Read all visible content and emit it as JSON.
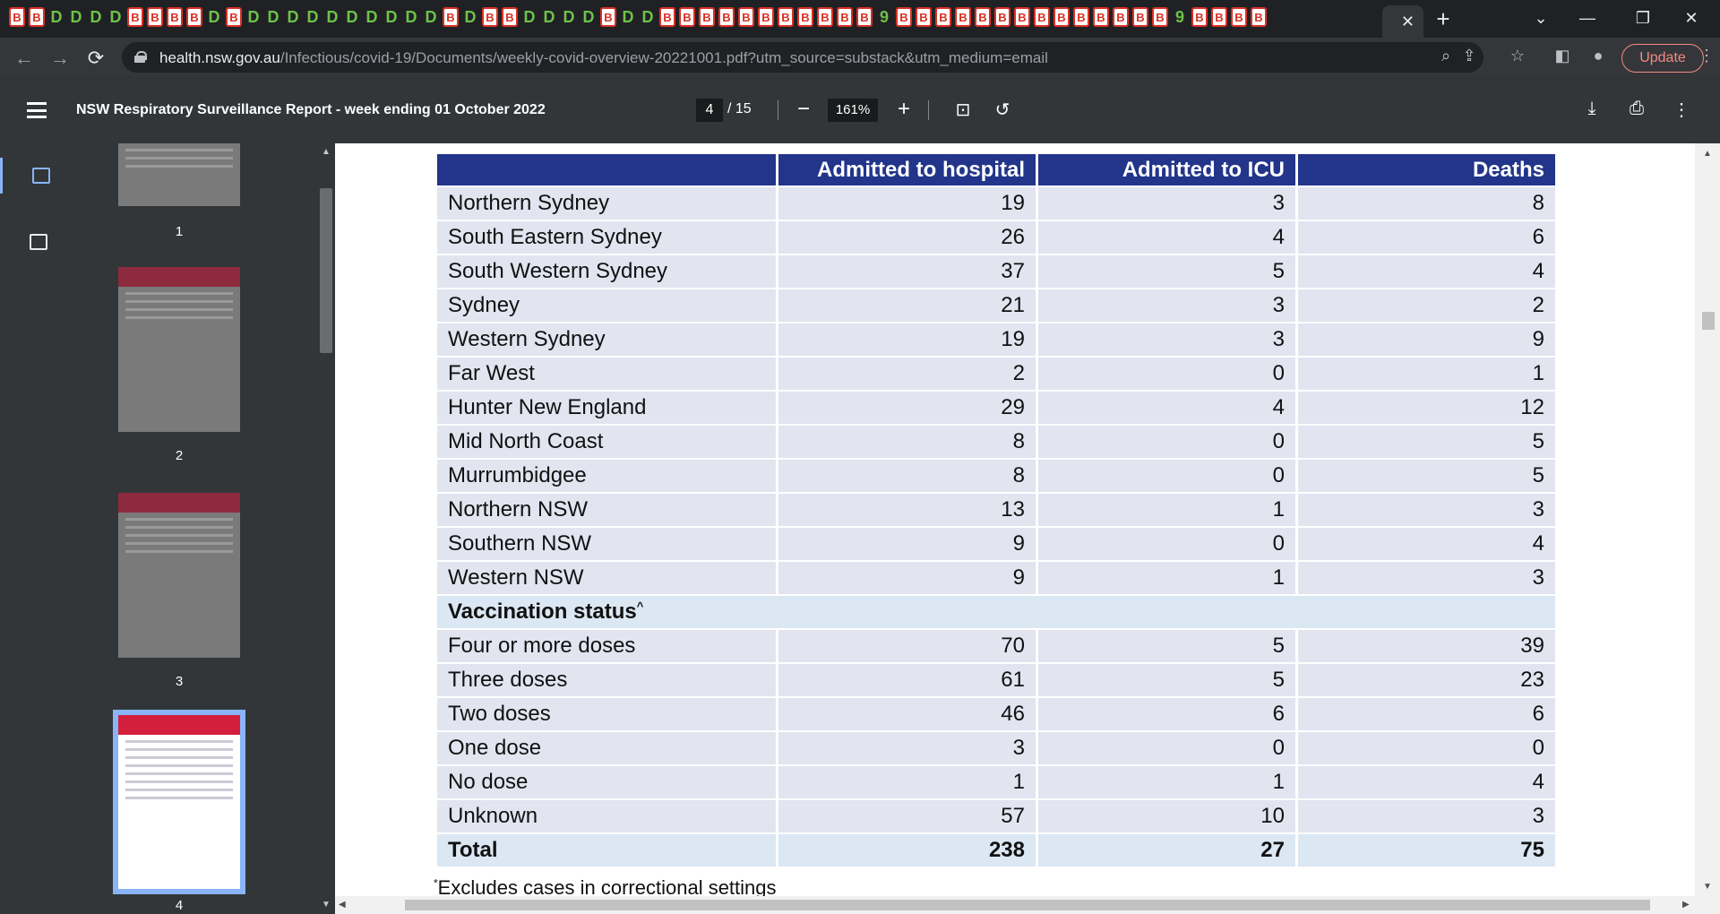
{
  "browser": {
    "active_tab_close": "✕",
    "new_tab": "+",
    "window_controls": {
      "dropdown": "⌄",
      "minimize": "—",
      "restore": "❐",
      "close": "✕"
    },
    "tab_icons": [
      "B",
      "B",
      "D",
      "D",
      "D",
      "D",
      "B",
      "B",
      "B",
      "B",
      "D",
      "B",
      "D",
      "D",
      "D",
      "D",
      "D",
      "D",
      "D",
      "D",
      "D",
      "D",
      "B",
      "D",
      "B",
      "B",
      "D",
      "D",
      "D",
      "D",
      "B",
      "D",
      "D",
      "B",
      "B",
      "B",
      "B",
      "B",
      "B",
      "B",
      "B",
      "B",
      "B",
      "B",
      "9",
      "B",
      "B",
      "B",
      "B",
      "B",
      "B",
      "B",
      "B",
      "B",
      "B",
      "B",
      "B",
      "B",
      "B",
      "9",
      "B",
      "B",
      "B",
      "B"
    ],
    "url_host": "health.nsw.gov.au",
    "url_path": "/Infectious/covid-19/Documents/weekly-covid-overview-20221001.pdf?utm_source=substack&utm_medium=email",
    "update_label": "Update"
  },
  "pdf_toolbar": {
    "title": "NSW Respiratory Surveillance Report - week ending 01 October 2022",
    "current_page": "4",
    "total_pages": "/ 15",
    "zoom": "161%"
  },
  "thumbnails": [
    {
      "label": "1"
    },
    {
      "label": "2"
    },
    {
      "label": "3"
    },
    {
      "label": "4"
    }
  ],
  "table": {
    "columns": [
      "",
      "Admitted to hospital",
      "Admitted to ICU",
      "Deaths"
    ],
    "rows": [
      [
        "Northern Sydney",
        "19",
        "3",
        "8"
      ],
      [
        "South Eastern Sydney",
        "26",
        "4",
        "6"
      ],
      [
        "South Western Sydney",
        "37",
        "5",
        "4"
      ],
      [
        "Sydney",
        "21",
        "3",
        "2"
      ],
      [
        "Western Sydney",
        "19",
        "3",
        "9"
      ],
      [
        "Far West",
        "2",
        "0",
        "1"
      ],
      [
        "Hunter New England",
        "29",
        "4",
        "12"
      ],
      [
        "Mid North Coast",
        "8",
        "0",
        "5"
      ],
      [
        "Murrumbidgee",
        "8",
        "0",
        "5"
      ],
      [
        "Northern NSW",
        "13",
        "1",
        "3"
      ],
      [
        "Southern NSW",
        "9",
        "0",
        "4"
      ],
      [
        "Western NSW",
        "9",
        "1",
        "3"
      ]
    ],
    "section_label": "Vaccination status",
    "section_marker": "^",
    "vaccination_rows": [
      [
        "Four or more doses",
        "70",
        "5",
        "39"
      ],
      [
        "Three doses",
        "61",
        "5",
        "23"
      ],
      [
        "Two doses",
        "46",
        "6",
        "6"
      ],
      [
        "One dose",
        "3",
        "0",
        "0"
      ],
      [
        "No dose",
        "1",
        "1",
        "4"
      ],
      [
        "Unknown",
        "57",
        "10",
        "3"
      ]
    ],
    "total": [
      "Total",
      "238",
      "27",
      "75"
    ]
  },
  "footnote": {
    "marker": "*",
    "text": "Excludes cases in correctional settings"
  }
}
